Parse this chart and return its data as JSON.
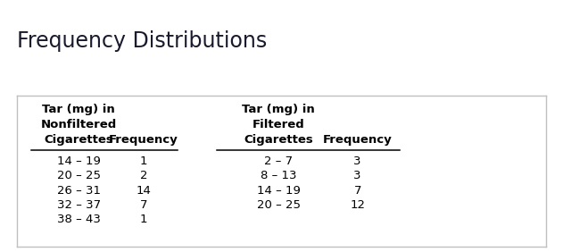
{
  "title": "Frequency Distributions",
  "title_fontsize": 17,
  "title_color": "#1a1a2e",
  "bg_color": "#ffffff",
  "box_edge_color": "#c0c0c0",
  "header1_line1": "Tar (mg) in",
  "header1_line2": "Nonfiltered",
  "header1_line3": "Cigarettes",
  "header2": "Frequency",
  "header3_line1": "Tar (mg) in",
  "header3_line2": "Filtered",
  "header3_line3": "Cigarettes",
  "header4": "Frequency",
  "col1_ranges": [
    "14 – 19",
    "20 – 25",
    "26 – 31",
    "32 – 37",
    "38 – 43"
  ],
  "col2_freqs": [
    "1",
    "2",
    "14",
    "7",
    "1"
  ],
  "col3_ranges": [
    "2 – 7",
    "8 – 13",
    "14 – 19",
    "20 – 25"
  ],
  "col4_freqs": [
    "3",
    "3",
    "7",
    "12"
  ],
  "header_fontsize": 9.5,
  "data_fontsize": 9.5,
  "text_color": "#000000",
  "title_weight": "normal"
}
